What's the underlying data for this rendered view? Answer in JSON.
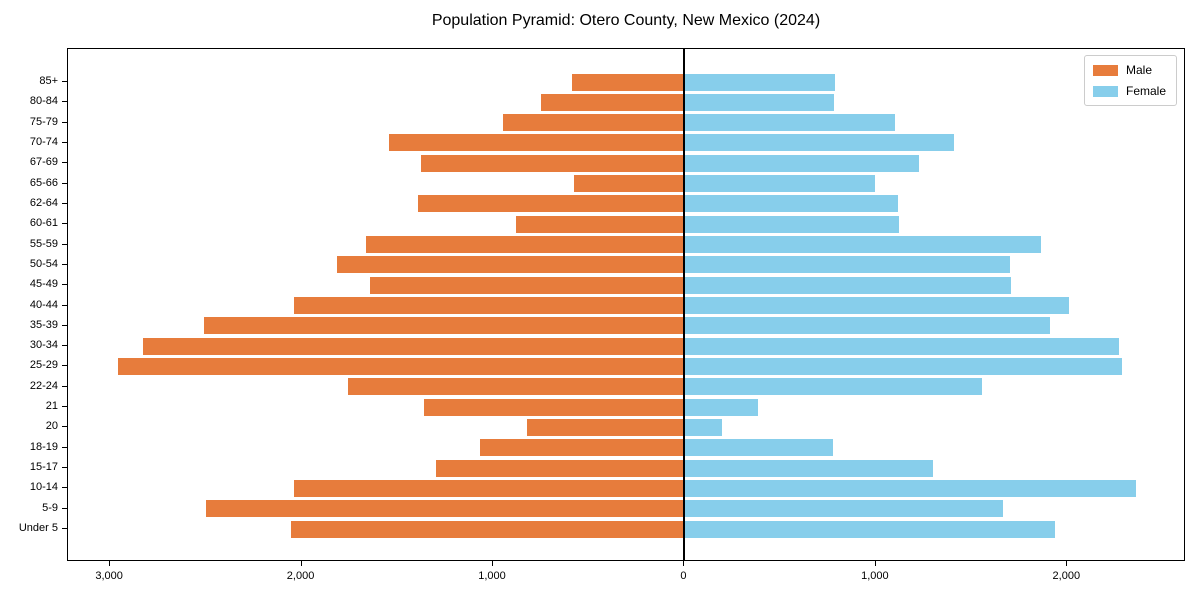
{
  "title": "Population Pyramid: Otero County, New Mexico (2024)",
  "legend": {
    "male_label": "Male",
    "female_label": "Female"
  },
  "colors": {
    "male": "#E77C3C",
    "female": "#87CEEB",
    "axis": "#000000",
    "background": "#ffffff",
    "legend_border": "#cccccc"
  },
  "chart_data": {
    "type": "bar",
    "subtype": "population-pyramid",
    "title": "Population Pyramid: Otero County, New Mexico (2024)",
    "xlabel": "",
    "ylabel": "",
    "grid": false,
    "legend_position": "upper right",
    "categories": [
      "85+",
      "80-84",
      "75-79",
      "70-74",
      "67-69",
      "65-66",
      "62-64",
      "60-61",
      "55-59",
      "50-54",
      "45-49",
      "40-44",
      "35-39",
      "30-34",
      "25-29",
      "22-24",
      "21",
      "20",
      "18-19",
      "15-17",
      "10-14",
      "5-9",
      "Under 5"
    ],
    "series": [
      {
        "name": "Male",
        "side": "left",
        "color": "#E77C3C",
        "values": [
          585,
          750,
          950,
          1545,
          1375,
          575,
          1390,
          880,
          1665,
          1815,
          1645,
          2040,
          2510,
          2830,
          2960,
          1760,
          1360,
          820,
          1070,
          1300,
          2040,
          2500,
          2055
        ]
      },
      {
        "name": "Female",
        "side": "right",
        "color": "#87CEEB",
        "values": [
          785,
          780,
          1100,
          1410,
          1225,
          995,
          1115,
          1120,
          1865,
          1700,
          1705,
          2010,
          1910,
          2270,
          2285,
          1555,
          385,
          195,
          775,
          1300,
          2360,
          1665,
          1935
        ]
      }
    ],
    "xlim": [
      -3220,
      2620
    ],
    "x_ticks": [
      {
        "value": -3000,
        "label": "3,000"
      },
      {
        "value": -2000,
        "label": "2,000"
      },
      {
        "value": -1000,
        "label": "1,000"
      },
      {
        "value": 0,
        "label": "0"
      },
      {
        "value": 1000,
        "label": "1,000"
      },
      {
        "value": 2000,
        "label": "2,000"
      }
    ]
  }
}
